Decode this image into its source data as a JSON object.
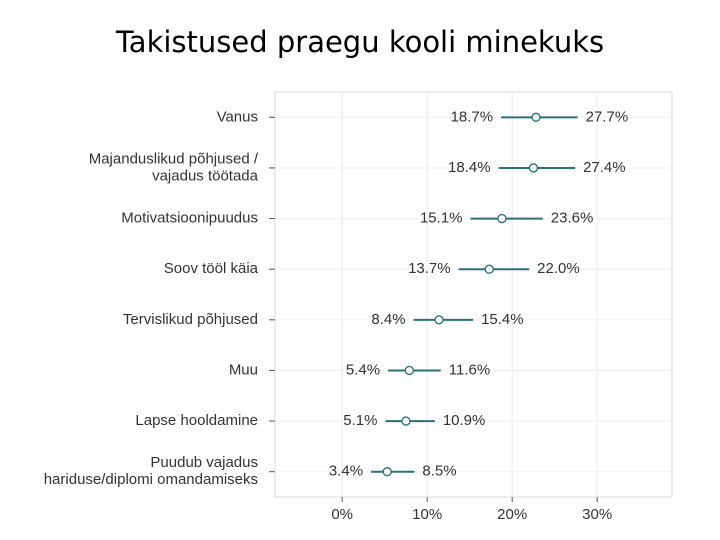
{
  "chart_data": {
    "type": "interval",
    "title": "Takistused praegu kooli minekuks",
    "categories": [
      "Vanus",
      [
        "Majanduslikud põhjused /",
        "vajadus töötada"
      ],
      "Motivatsioonipuudus",
      "Soov tööl käia",
      "Tervislikud põhjused",
      "Muu",
      "Lapse hooldamine",
      [
        "Puudub vajadus",
        "hariduse/diplomi omandamiseks"
      ]
    ],
    "low": {
      "color": "#2b6f78",
      "values": [
        18.7,
        18.4,
        15.1,
        13.7,
        8.4,
        5.4,
        5.1,
        3.4
      ],
      "value_labels": [
        "18.7%",
        "18.4%",
        "15.1%",
        "13.7%",
        "8.4%",
        "5.4%",
        "5.1%",
        "3.4%"
      ]
    },
    "estimate": {
      "color": "#2b6f78",
      "values": [
        22.8,
        22.5,
        18.8,
        17.3,
        11.4,
        7.9,
        7.5,
        5.3
      ]
    },
    "high": {
      "color": "#2b6f78",
      "values": [
        27.7,
        27.4,
        23.6,
        22.0,
        15.4,
        11.6,
        10.9,
        8.5
      ],
      "value_labels": [
        "27.7%",
        "27.4%",
        "23.6%",
        "22.0%",
        "15.4%",
        "11.6%",
        "10.9%",
        "8.5%"
      ]
    },
    "xlim": [
      -7.9,
      38.8
    ],
    "xticks": [
      {
        "value": 0,
        "label": "0%"
      },
      {
        "value": 10,
        "label": "10%"
      },
      {
        "value": 20,
        "label": "20%"
      },
      {
        "value": 30,
        "label": "30%"
      }
    ],
    "grid": true
  }
}
